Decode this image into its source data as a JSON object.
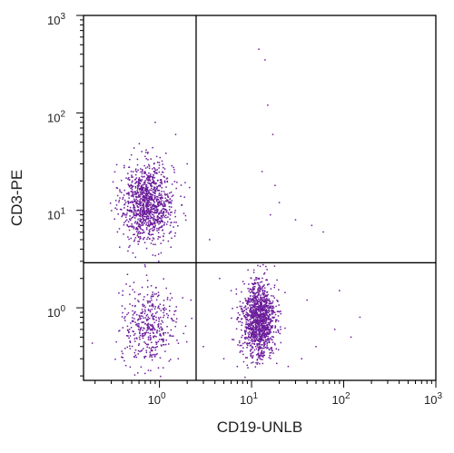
{
  "chart_data": {
    "type": "scatter",
    "title": "",
    "xlabel": "CD19-UNLB",
    "ylabel": "CD3-PE",
    "x_scale": "log",
    "y_scale": "log",
    "xlim": [
      0.15,
      1000
    ],
    "ylim": [
      0.18,
      1000
    ],
    "x_ticks": [
      {
        "value": 1,
        "base": "10",
        "exp": "0"
      },
      {
        "value": 10,
        "base": "10",
        "exp": "1"
      },
      {
        "value": 100,
        "base": "10",
        "exp": "2"
      },
      {
        "value": 1000,
        "base": "10",
        "exp": "3"
      }
    ],
    "y_ticks": [
      {
        "value": 1,
        "base": "10",
        "exp": "0"
      },
      {
        "value": 10,
        "base": "10",
        "exp": "1"
      },
      {
        "value": 100,
        "base": "10",
        "exp": "2"
      },
      {
        "value": 1000,
        "base": "10",
        "exp": "3"
      }
    ],
    "quadrant_gates": {
      "x": 2.5,
      "y": 2.9
    },
    "point_color": "#6a1b9a",
    "grid": false,
    "series": [
      {
        "clusters": [
          {
            "center": [
              0.75,
              12
            ],
            "spread": [
              0.14,
              0.2
            ],
            "count": 1100
          },
          {
            "center": [
              0.78,
              0.65
            ],
            "spread": [
              0.15,
              0.2
            ],
            "count": 420
          },
          {
            "center": [
              12,
              0.75
            ],
            "spread": [
              0.09,
              0.2
            ],
            "count": 1250
          }
        ],
        "outliers": [
          [
            12,
            450
          ],
          [
            14,
            350
          ],
          [
            15,
            120
          ],
          [
            17,
            60
          ],
          [
            13,
            25
          ],
          [
            18,
            18
          ],
          [
            20,
            12
          ],
          [
            16,
            9
          ],
          [
            30,
            8
          ],
          [
            45,
            7
          ],
          [
            60,
            6
          ],
          [
            2.0,
            30
          ],
          [
            1.5,
            60
          ],
          [
            0.9,
            80
          ],
          [
            3.5,
            5
          ],
          [
            4.5,
            2
          ],
          [
            6,
            1.5
          ],
          [
            40,
            1.2
          ],
          [
            80,
            0.6
          ],
          [
            120,
            0.5
          ],
          [
            150,
            0.8
          ],
          [
            90,
            1.5
          ],
          [
            3,
            0.4
          ],
          [
            5,
            0.3
          ],
          [
            7,
            0.25
          ],
          [
            25,
            0.25
          ],
          [
            35,
            0.3
          ],
          [
            50,
            0.4
          ],
          [
            2.2,
            1.2
          ],
          [
            1.6,
            0.3
          ],
          [
            0.45,
            2.2
          ],
          [
            0.35,
            6
          ]
        ]
      }
    ]
  }
}
